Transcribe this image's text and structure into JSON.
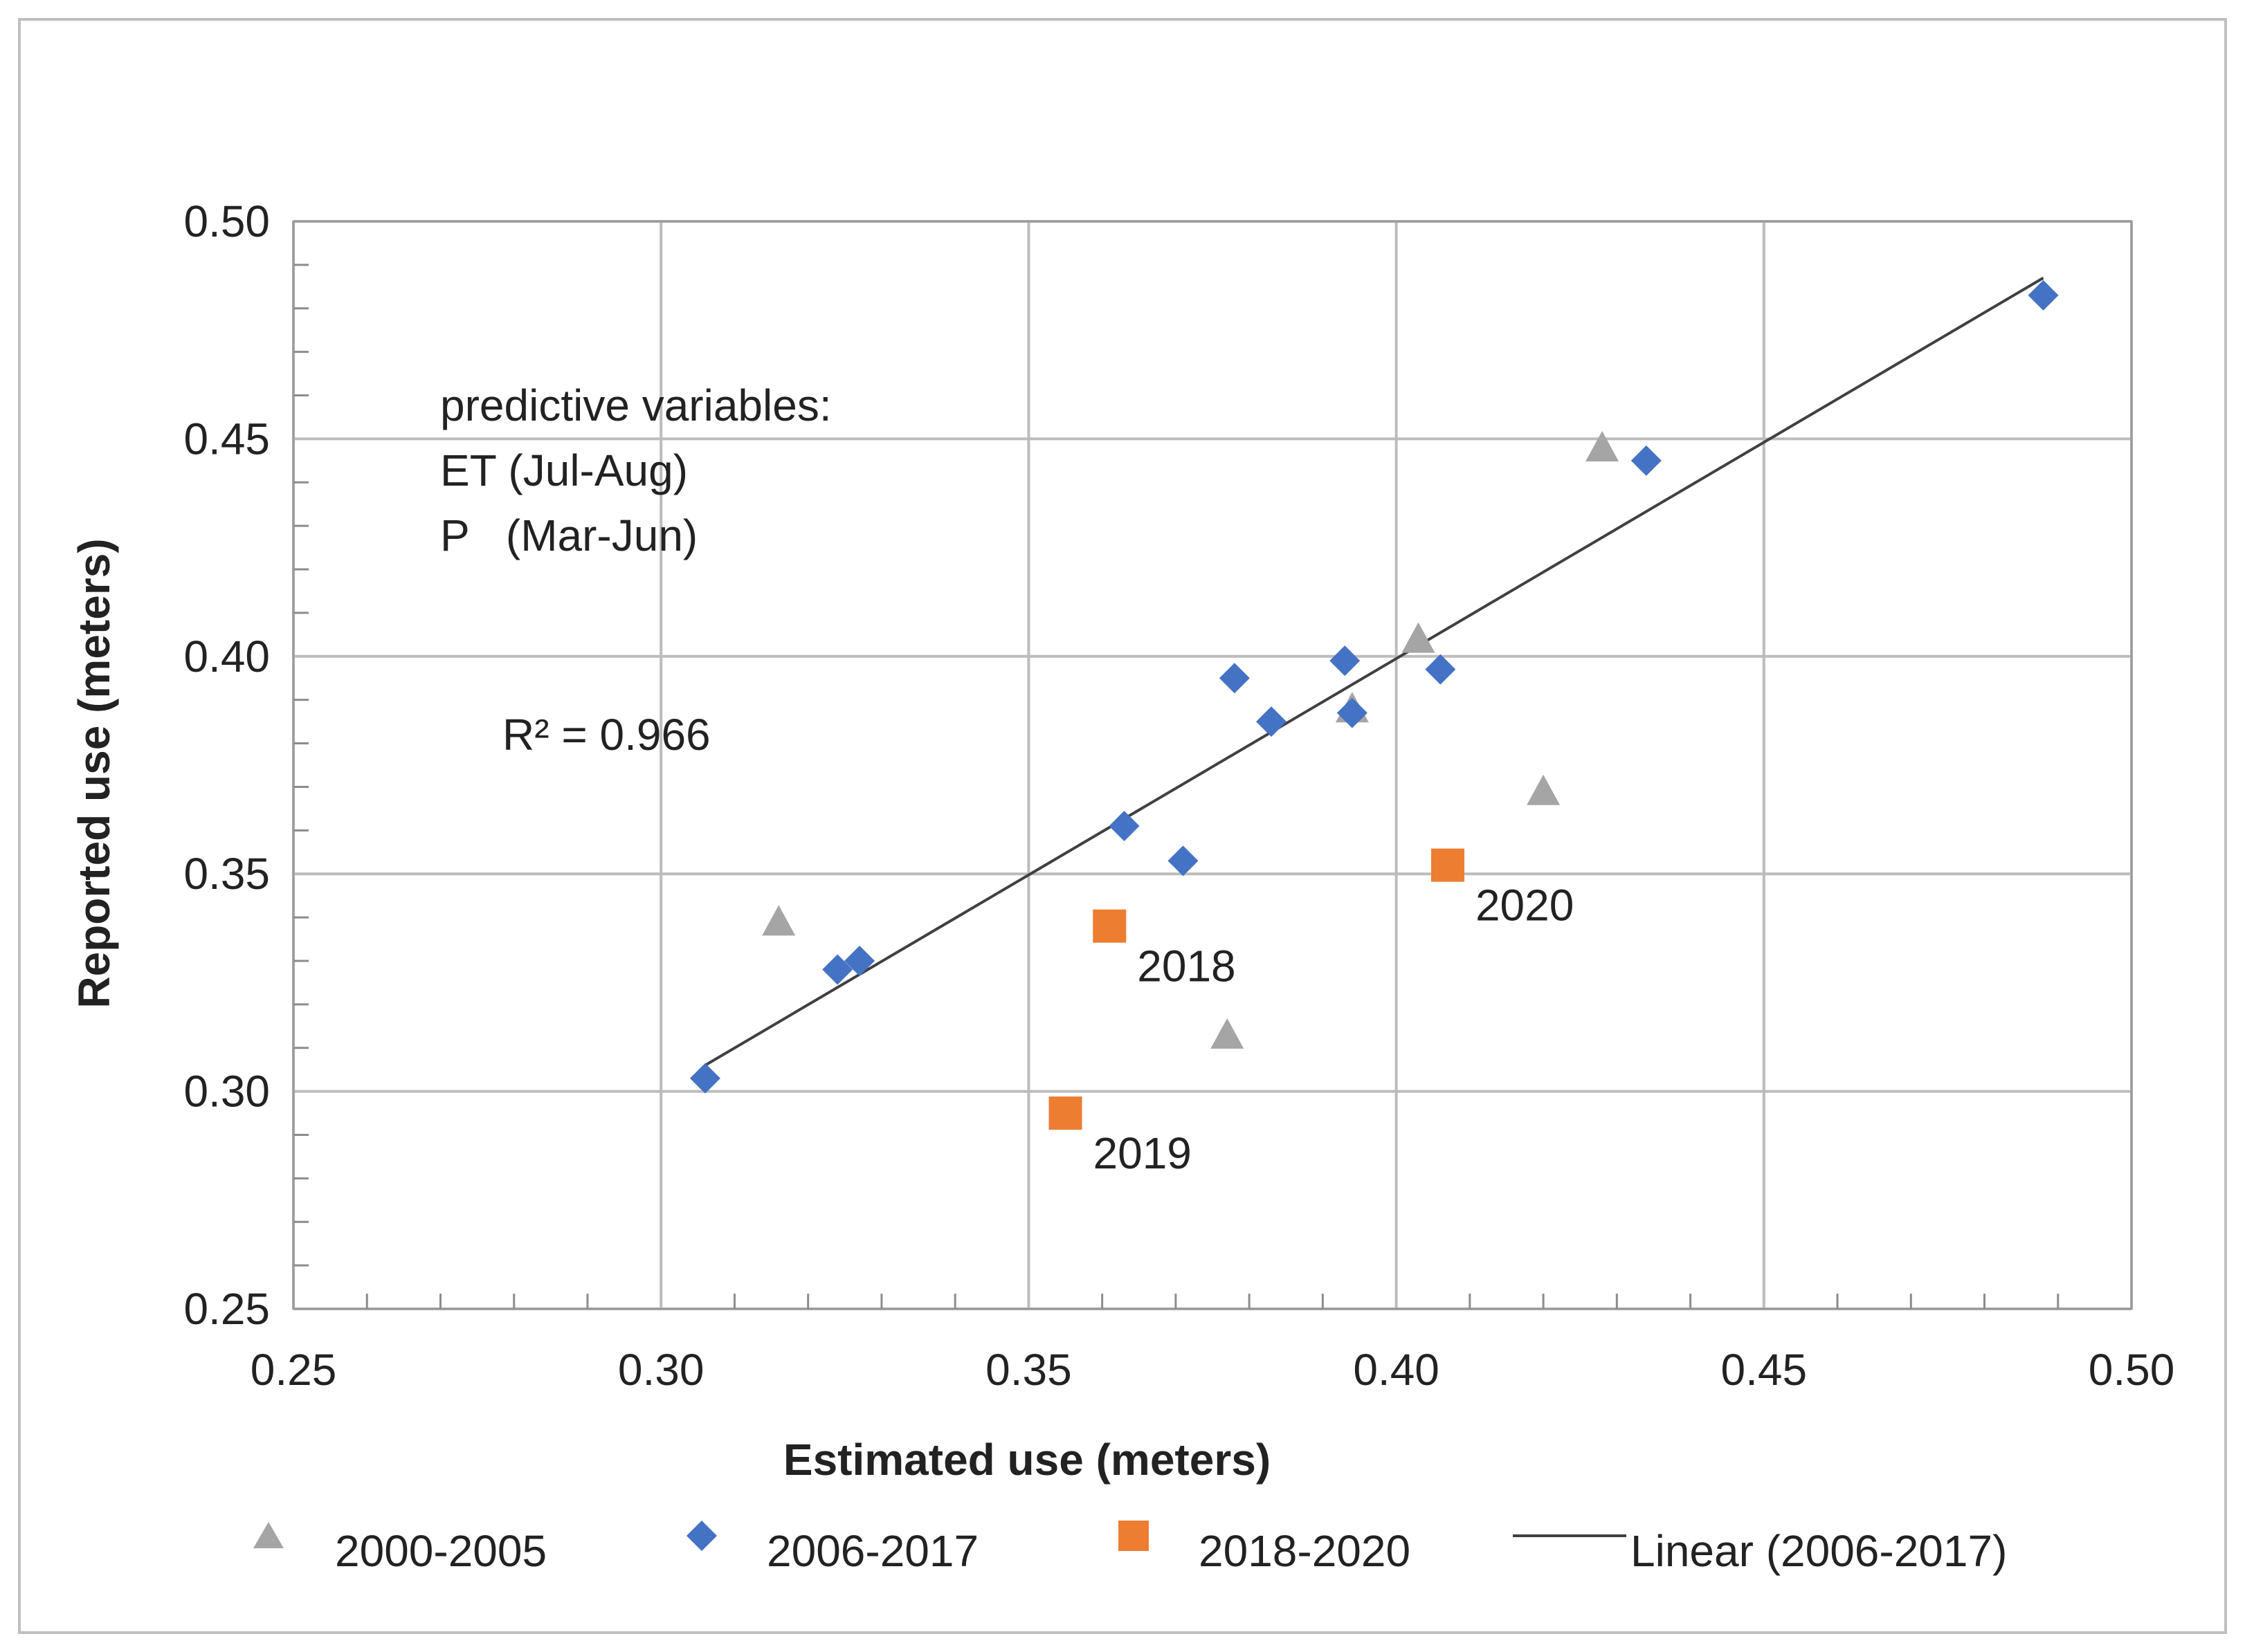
{
  "chart_data": {
    "type": "scatter",
    "title": "",
    "xlabel": "Estimated use (meters)",
    "ylabel": "Reported use (meters)",
    "xlim": [
      0.25,
      0.5
    ],
    "ylim": [
      0.25,
      0.5
    ],
    "xticks": [
      "0.25",
      "0.30",
      "0.35",
      "0.40",
      "0.45",
      "0.50"
    ],
    "yticks": [
      "0.25",
      "0.30",
      "0.35",
      "0.40",
      "0.45",
      "0.50"
    ],
    "grid": true,
    "legend_position": "bottom",
    "series": [
      {
        "name": "2000-2005",
        "marker": "triangle",
        "color": "#A5A5A5",
        "points": [
          {
            "x": 0.316,
            "y": 0.339
          },
          {
            "x": 0.377,
            "y": 0.313
          },
          {
            "x": 0.394,
            "y": 0.388
          },
          {
            "x": 0.403,
            "y": 0.404
          },
          {
            "x": 0.42,
            "y": 0.369
          },
          {
            "x": 0.428,
            "y": 0.448
          }
        ]
      },
      {
        "name": "2006-2017",
        "marker": "diamond",
        "color": "#4472C4",
        "points": [
          {
            "x": 0.306,
            "y": 0.303
          },
          {
            "x": 0.324,
            "y": 0.328
          },
          {
            "x": 0.327,
            "y": 0.33
          },
          {
            "x": 0.363,
            "y": 0.361
          },
          {
            "x": 0.371,
            "y": 0.353
          },
          {
            "x": 0.378,
            "y": 0.395
          },
          {
            "x": 0.383,
            "y": 0.385
          },
          {
            "x": 0.393,
            "y": 0.399
          },
          {
            "x": 0.394,
            "y": 0.387
          },
          {
            "x": 0.406,
            "y": 0.397
          },
          {
            "x": 0.434,
            "y": 0.445
          },
          {
            "x": 0.488,
            "y": 0.483
          }
        ]
      },
      {
        "name": "2018-2020",
        "marker": "square",
        "color": "#ED7D31",
        "points": [
          {
            "x": 0.361,
            "y": 0.338,
            "label": "2018"
          },
          {
            "x": 0.355,
            "y": 0.295,
            "label": "2019"
          },
          {
            "x": 0.407,
            "y": 0.352,
            "label": "2020"
          }
        ]
      }
    ],
    "trendline": {
      "name": "Linear (2006-2017)",
      "color": "#404040",
      "from": {
        "x": 0.306,
        "y": 0.306
      },
      "to": {
        "x": 0.488,
        "y": 0.487
      }
    },
    "annotations": {
      "predictive_title": "predictive variables:",
      "predictive_et": "ET (Jul-Aug)",
      "predictive_p": "P   (Mar-Jun)",
      "r_squared": "R² = 0.966"
    }
  }
}
